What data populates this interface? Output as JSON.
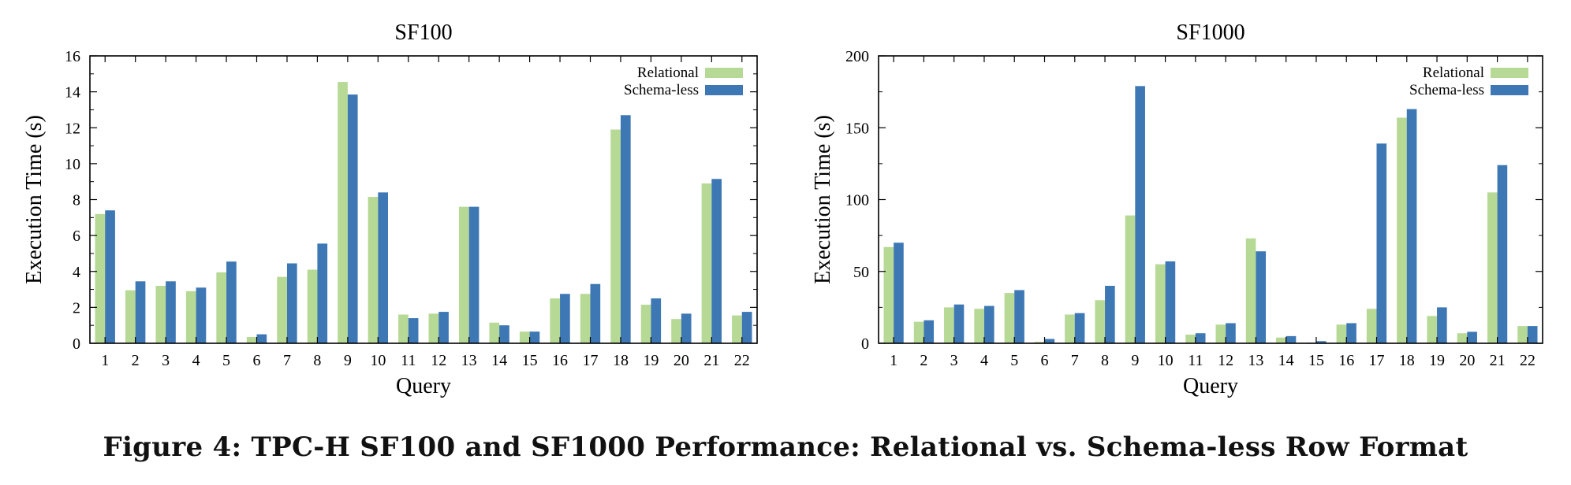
{
  "caption": "Figure 4: TPC-H SF100 and SF1000 Performance: Relational vs. Schema-less Row Format",
  "colors": {
    "relational": "#b7d996",
    "schemaless": "#3e78b4",
    "axis": "#000000"
  },
  "chart_data": [
    {
      "type": "bar",
      "title": "SF100",
      "xlabel": "Query",
      "ylabel": "Execution Time (s)",
      "ylim": [
        0,
        16
      ],
      "yticks": [
        0,
        2,
        4,
        6,
        8,
        10,
        12,
        14,
        16
      ],
      "legend_position": "top-right",
      "grid": false,
      "categories": [
        "1",
        "2",
        "3",
        "4",
        "5",
        "6",
        "7",
        "8",
        "9",
        "10",
        "11",
        "12",
        "13",
        "14",
        "15",
        "16",
        "17",
        "18",
        "19",
        "20",
        "21",
        "22"
      ],
      "series": [
        {
          "name": "Relational",
          "values": [
            7.2,
            2.95,
            3.2,
            2.9,
            3.95,
            0.35,
            3.7,
            4.1,
            14.55,
            8.15,
            1.6,
            1.65,
            7.6,
            1.15,
            0.65,
            2.5,
            2.75,
            11.9,
            2.15,
            1.35,
            8.9,
            1.55
          ]
        },
        {
          "name": "Schema-less",
          "values": [
            7.4,
            3.45,
            3.45,
            3.1,
            4.55,
            0.5,
            4.45,
            5.55,
            13.85,
            8.4,
            1.4,
            1.75,
            7.6,
            1.0,
            0.65,
            2.75,
            3.3,
            12.7,
            2.5,
            1.65,
            9.15,
            1.75
          ]
        }
      ]
    },
    {
      "type": "bar",
      "title": "SF1000",
      "xlabel": "Query",
      "ylabel": "Execution Time (s)",
      "ylim": [
        0,
        200
      ],
      "yticks": [
        0,
        50,
        100,
        150,
        200
      ],
      "legend_position": "top-right",
      "grid": false,
      "categories": [
        "1",
        "2",
        "3",
        "4",
        "5",
        "6",
        "7",
        "8",
        "9",
        "10",
        "11",
        "12",
        "13",
        "14",
        "15",
        "16",
        "17",
        "18",
        "19",
        "20",
        "21",
        "22"
      ],
      "series": [
        {
          "name": "Relational",
          "values": [
            67,
            15,
            25,
            24,
            35,
            1,
            20,
            30,
            89,
            55,
            6,
            13,
            73,
            4,
            0.5,
            13,
            24,
            157,
            19,
            7,
            105,
            12
          ]
        },
        {
          "name": "Schema-less",
          "values": [
            70,
            16,
            27,
            26,
            37,
            3,
            21,
            40,
            179,
            57,
            7,
            14,
            64,
            5,
            1.5,
            14,
            139,
            163,
            25,
            8,
            124,
            12
          ]
        }
      ]
    }
  ]
}
